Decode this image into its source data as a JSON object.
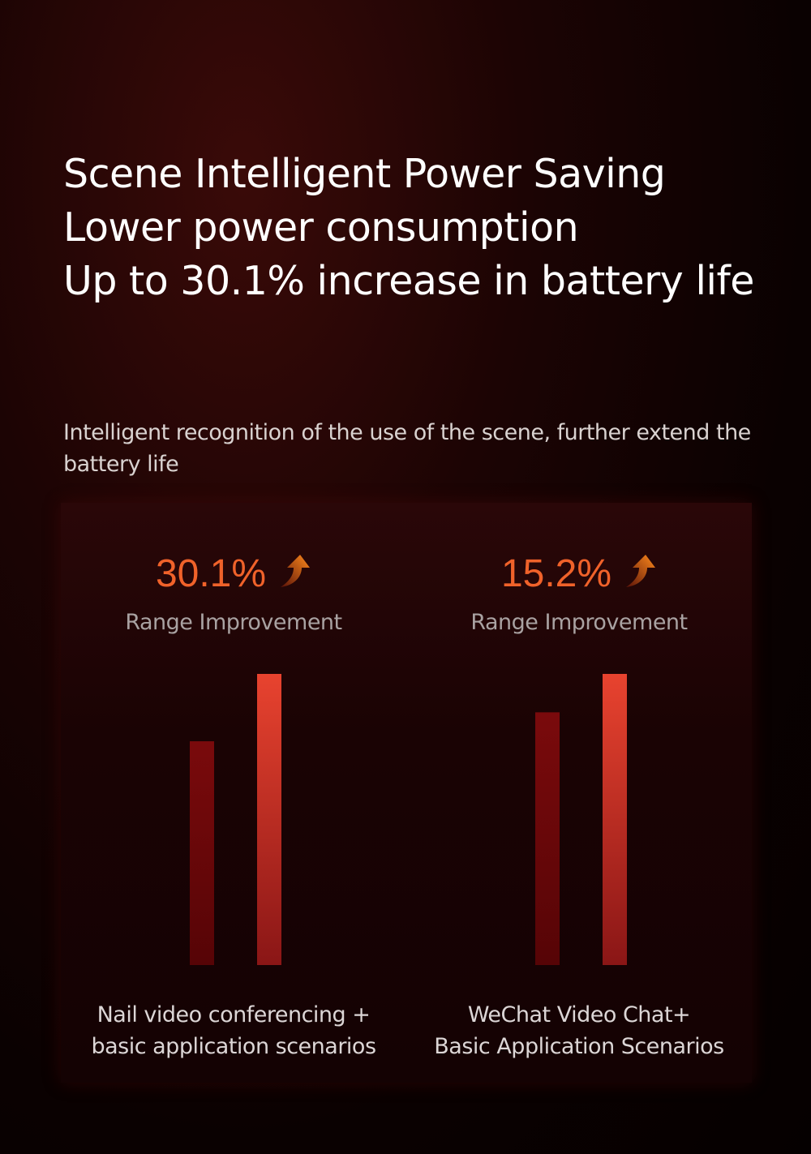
{
  "title_lines": [
    "Scene Intelligent Power Saving",
    "Lower power consumption",
    "Up to 30.1% increase in battery life"
  ],
  "subtitle": "Intelligent recognition of the use of the scene, further extend the battery life",
  "chart_data": {
    "type": "bar",
    "groups": [
      {
        "improvement": "30.1%",
        "label": "Range Improvement",
        "caption_lines": [
          "Nail video conferencing +",
          "basic application scenarios"
        ],
        "values": [
          100,
          130.1
        ]
      },
      {
        "improvement": "15.2%",
        "label": "Range Improvement",
        "caption_lines": [
          "WeChat Video Chat+",
          "Basic Application Scenarios"
        ],
        "values": [
          100,
          115.2
        ]
      }
    ],
    "colors": {
      "baseline": "#7a0a0c",
      "improved": "#e8432f",
      "accent": "#f0622a"
    },
    "icon": "arrow-up-icon"
  }
}
